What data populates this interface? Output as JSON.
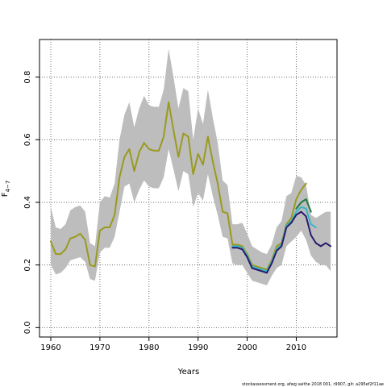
{
  "chart_data": {
    "type": "line",
    "xlabel": "Years",
    "ylabel": "F",
    "ylabel_sub": "4−7",
    "xlim": [
      1957.7,
      2018.3
    ],
    "ylim": [
      -0.03,
      0.92
    ],
    "x_ticks": [
      1960,
      1970,
      1980,
      1990,
      2000,
      2010
    ],
    "y_ticks": [
      0.0,
      0.2,
      0.4,
      0.6,
      0.8
    ],
    "x_tick_labels": [
      "1960",
      "1970",
      "1980",
      "1990",
      "2000",
      "2010"
    ],
    "y_tick_labels": [
      "0.0",
      "0.2",
      "0.4",
      "0.6",
      "0.8"
    ],
    "grid": true,
    "footer": "stockassessment.org, afwg saithe 2018 001, r9907, git: a295ef2f11ae",
    "band": {
      "x": [
        1960,
        1961,
        1962,
        1963,
        1964,
        1965,
        1966,
        1967,
        1968,
        1969,
        1970,
        1971,
        1972,
        1973,
        1974,
        1975,
        1976,
        1977,
        1978,
        1979,
        1980,
        1981,
        1982,
        1983,
        1984,
        1985,
        1986,
        1987,
        1988,
        1989,
        1990,
        1991,
        1992,
        1993,
        1994,
        1995,
        1996,
        1997,
        1998,
        1999,
        2000,
        2001,
        2002,
        2003,
        2004,
        2005,
        2006,
        2007,
        2008,
        2009,
        2010,
        2011,
        2012,
        2013,
        2014,
        2015,
        2016,
        2017
      ],
      "lower": [
        0.2,
        0.17,
        0.175,
        0.19,
        0.215,
        0.22,
        0.225,
        0.21,
        0.155,
        0.15,
        0.24,
        0.255,
        0.255,
        0.29,
        0.37,
        0.45,
        0.46,
        0.4,
        0.44,
        0.47,
        0.45,
        0.445,
        0.445,
        0.48,
        0.57,
        0.505,
        0.435,
        0.5,
        0.49,
        0.385,
        0.43,
        0.405,
        0.49,
        0.42,
        0.36,
        0.29,
        0.285,
        0.205,
        0.2,
        0.2,
        0.175,
        0.15,
        0.145,
        0.14,
        0.135,
        0.165,
        0.19,
        0.2,
        0.26,
        0.275,
        0.29,
        0.31,
        0.28,
        0.23,
        0.21,
        0.2,
        0.2,
        0.18
      ],
      "upper": [
        0.385,
        0.32,
        0.315,
        0.33,
        0.375,
        0.385,
        0.39,
        0.37,
        0.27,
        0.26,
        0.4,
        0.42,
        0.415,
        0.46,
        0.6,
        0.68,
        0.72,
        0.64,
        0.7,
        0.74,
        0.71,
        0.705,
        0.705,
        0.76,
        0.89,
        0.8,
        0.7,
        0.765,
        0.755,
        0.6,
        0.7,
        0.65,
        0.76,
        0.67,
        0.59,
        0.47,
        0.455,
        0.33,
        0.33,
        0.335,
        0.3,
        0.26,
        0.25,
        0.24,
        0.235,
        0.265,
        0.32,
        0.34,
        0.42,
        0.43,
        0.485,
        0.48,
        0.455,
        0.36,
        0.35,
        0.36,
        0.37,
        0.37
      ]
    },
    "series": [
      {
        "color": "#9a9a1f",
        "x": [
          1960,
          1961,
          1962,
          1963,
          1964,
          1965,
          1966,
          1967,
          1968,
          1969,
          1970,
          1971,
          1972,
          1973,
          1974,
          1975,
          1976,
          1977,
          1978,
          1979,
          1980,
          1981,
          1982,
          1983,
          1984,
          1985,
          1986,
          1987,
          1988,
          1989,
          1990,
          1991,
          1992,
          1993,
          1994,
          1995,
          1996,
          1997,
          1998,
          1999,
          2000,
          2001,
          2002,
          2003,
          2004,
          2005,
          2006,
          2007,
          2008,
          2009,
          2010,
          2011,
          2012
        ],
        "values": [
          0.275,
          0.235,
          0.235,
          0.25,
          0.285,
          0.29,
          0.3,
          0.28,
          0.2,
          0.195,
          0.31,
          0.32,
          0.32,
          0.36,
          0.48,
          0.545,
          0.57,
          0.5,
          0.56,
          0.59,
          0.57,
          0.565,
          0.565,
          0.61,
          0.72,
          0.63,
          0.545,
          0.62,
          0.61,
          0.49,
          0.555,
          0.52,
          0.61,
          0.53,
          0.46,
          0.37,
          0.365,
          0.265,
          0.265,
          0.26,
          0.235,
          0.2,
          0.195,
          0.19,
          0.185,
          0.215,
          0.26,
          0.27,
          0.33,
          0.35,
          0.41,
          0.44,
          0.46
        ]
      },
      {
        "color": "#1f7a3f",
        "x": [
          2010,
          2011,
          2012,
          2013
        ],
        "values": [
          0.38,
          0.4,
          0.41,
          0.37
        ]
      },
      {
        "color": "#35b5c6",
        "x": [
          1997,
          1998,
          1999,
          2000,
          2001,
          2002,
          2003,
          2004,
          2005,
          2006,
          2007,
          2008,
          2009,
          2010,
          2011,
          2012,
          2013,
          2014
        ],
        "values": [
          0.26,
          0.26,
          0.255,
          0.23,
          0.195,
          0.19,
          0.185,
          0.18,
          0.21,
          0.25,
          0.265,
          0.325,
          0.34,
          0.37,
          0.385,
          0.38,
          0.33,
          0.32
        ]
      },
      {
        "color": "#2a1a6e",
        "x": [
          1997,
          1998,
          1999,
          2000,
          2001,
          2002,
          2003,
          2004,
          2005,
          2006,
          2007,
          2008,
          2009,
          2010,
          2011,
          2012,
          2013,
          2014,
          2015,
          2016,
          2017
        ],
        "values": [
          0.255,
          0.255,
          0.25,
          0.225,
          0.19,
          0.185,
          0.18,
          0.175,
          0.205,
          0.245,
          0.26,
          0.32,
          0.335,
          0.36,
          0.37,
          0.355,
          0.295,
          0.27,
          0.26,
          0.27,
          0.26
        ]
      }
    ]
  }
}
